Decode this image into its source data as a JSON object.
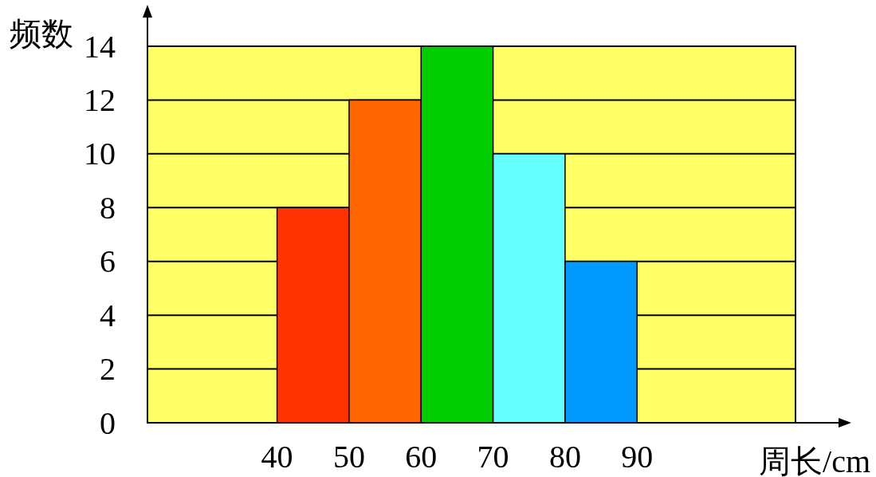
{
  "chart_data": {
    "type": "histogram",
    "xlabel": "周长/cm",
    "ylabel": "频数",
    "bins": [
      40,
      50,
      60,
      70,
      80,
      90
    ],
    "values": [
      8,
      12,
      14,
      10,
      6
    ],
    "colors": [
      "#ff3300",
      "#ff6600",
      "#00cc00",
      "#66ffff",
      "#0099ff"
    ],
    "xlim": [
      22,
      112
    ],
    "xticks": [
      40,
      50,
      60,
      70,
      80,
      90
    ],
    "ylim": [
      0,
      14
    ],
    "yticks": [
      0,
      2,
      4,
      6,
      8,
      10,
      12,
      14
    ],
    "grid": "y"
  }
}
